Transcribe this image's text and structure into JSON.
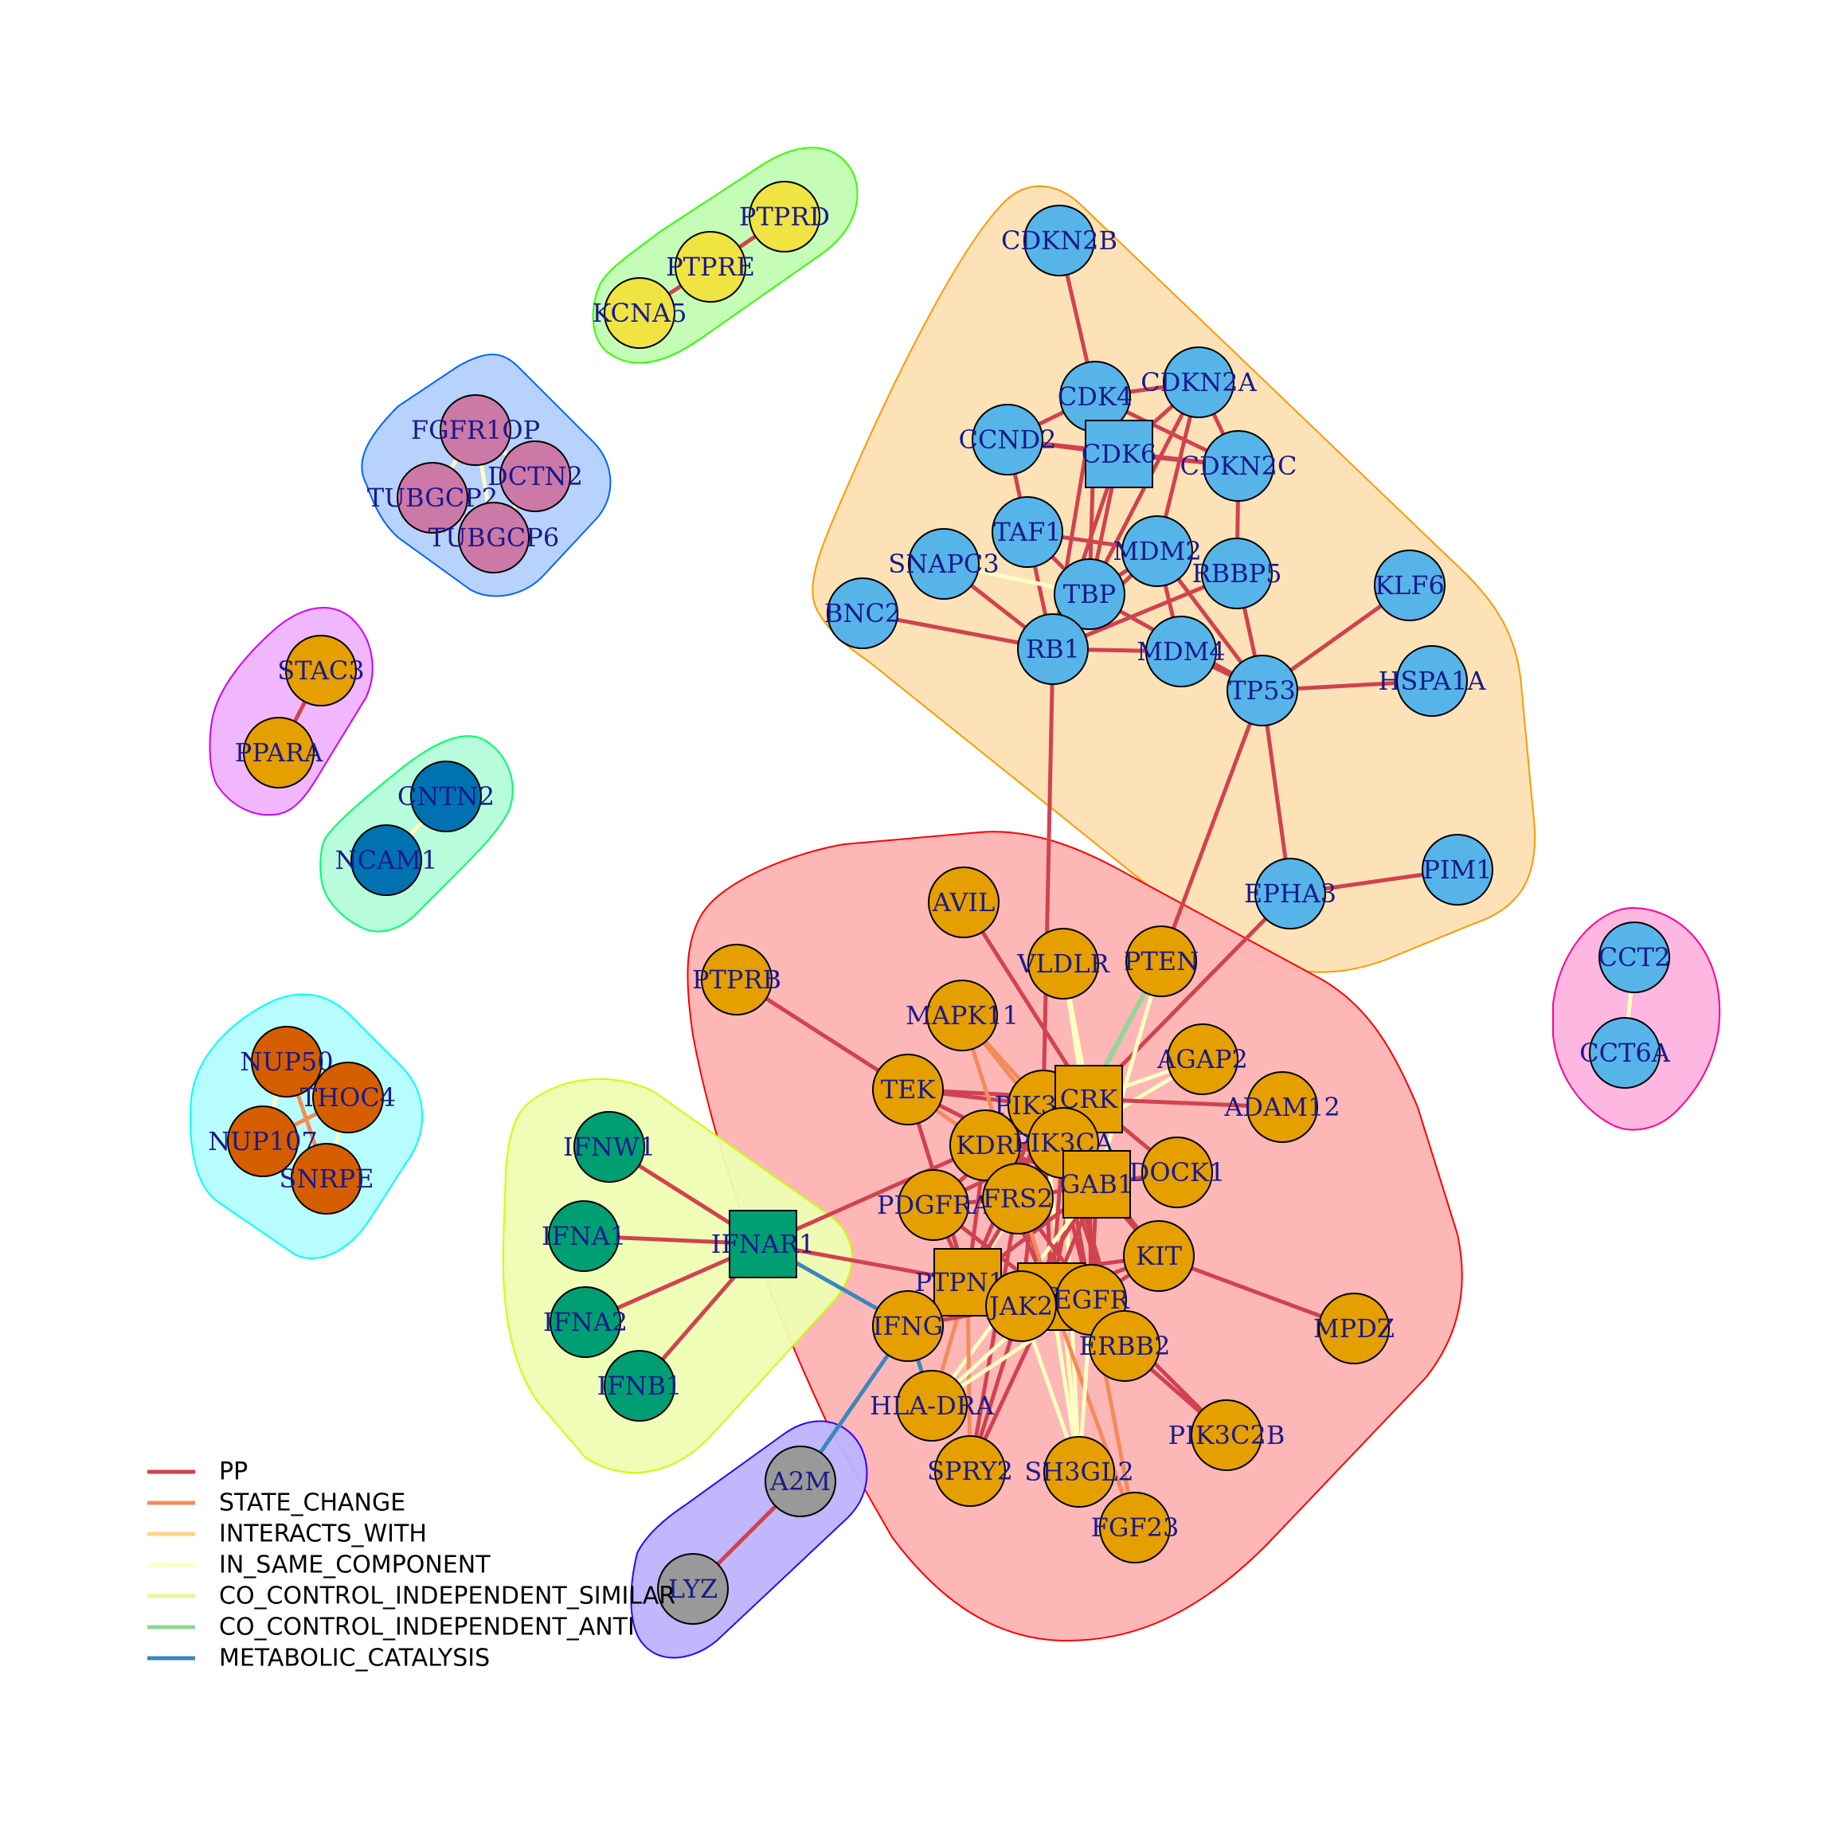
{
  "palette": {
    "blue": "#56B4E9",
    "orange": "#E69F00",
    "green": "#009E73",
    "yellow": "#F0E442",
    "pink": "#CC79A7",
    "rust": "#D55E00",
    "dkblue": "#0072B2",
    "gray": "#999999"
  },
  "edge_colors": {
    "PP": "#D1424F",
    "STATE_CHANGE": "#F48B5A",
    "INTERACTS_WITH": "#FDD585",
    "IN_SAME_COMPONENT": "#FFFFC0",
    "CO_CONTROL_INDEPENDENT_SIMILAR": "#E9F59E",
    "CO_CONTROL_INDEPENDENT_ANTI": "#93D597",
    "METABOLIC_CATALYSIS": "#3B87BC"
  },
  "groups": [
    {
      "id": "g-tp53",
      "fill": "#FDE0B4",
      "stroke": "#FF9900"
    },
    {
      "id": "g-rtk",
      "fill": "#FDB3B3",
      "stroke": "#FF0000"
    },
    {
      "id": "g-ifn",
      "fill": "#EEFDB3",
      "stroke": "#CCFF00"
    },
    {
      "id": "g-ptpr",
      "fill": "#C2FDB3",
      "stroke": "#33FF00"
    },
    {
      "id": "g-fgfr1op",
      "fill": "#B3D1FD",
      "stroke": "#0066FF"
    },
    {
      "id": "g-stac3",
      "fill": "#EFB3FD",
      "stroke": "#CC00FF"
    },
    {
      "id": "g-cntn2",
      "fill": "#B3FDD9",
      "stroke": "#00FF66"
    },
    {
      "id": "g-nup",
      "fill": "#B3FDFD",
      "stroke": "#00FFFF"
    },
    {
      "id": "g-a2m",
      "fill": "#BDB3FD",
      "stroke": "#3300FF"
    },
    {
      "id": "g-cct",
      "fill": "#FDB3DF",
      "stroke": "#FF0099"
    }
  ],
  "nodes": [
    {
      "id": "CDKN2B",
      "label": "CDKN2B",
      "color": "blue",
      "shape": "circle"
    },
    {
      "id": "CDKN2A",
      "label": "CDKN2A",
      "color": "blue",
      "shape": "circle"
    },
    {
      "id": "CDK4",
      "label": "CDK4",
      "color": "blue",
      "shape": "circle"
    },
    {
      "id": "CCND2",
      "label": "CCND2",
      "color": "blue",
      "shape": "circle"
    },
    {
      "id": "CDK6",
      "label": "CDK6",
      "color": "blue",
      "shape": "square"
    },
    {
      "id": "CDKN2C",
      "label": "CDKN2C",
      "color": "blue",
      "shape": "circle"
    },
    {
      "id": "TAF1",
      "label": "TAF1",
      "color": "blue",
      "shape": "circle"
    },
    {
      "id": "MDM2",
      "label": "MDM2",
      "color": "blue",
      "shape": "circle"
    },
    {
      "id": "SNAPC3",
      "label": "SNAPC3",
      "color": "blue",
      "shape": "circle"
    },
    {
      "id": "RBBP5",
      "label": "RBBP5",
      "color": "blue",
      "shape": "circle"
    },
    {
      "id": "KLF6",
      "label": "KLF6",
      "color": "blue",
      "shape": "circle"
    },
    {
      "id": "TBP",
      "label": "TBP",
      "color": "blue",
      "shape": "circle"
    },
    {
      "id": "BNC2",
      "label": "BNC2",
      "color": "blue",
      "shape": "circle"
    },
    {
      "id": "RB1",
      "label": "RB1",
      "color": "blue",
      "shape": "circle"
    },
    {
      "id": "MDM4",
      "label": "MDM4",
      "color": "blue",
      "shape": "circle"
    },
    {
      "id": "HSPA1A",
      "label": "HSPA1A",
      "color": "blue",
      "shape": "circle"
    },
    {
      "id": "TP53",
      "label": "TP53",
      "color": "blue",
      "shape": "circle"
    },
    {
      "id": "PIM1",
      "label": "PIM1",
      "color": "blue",
      "shape": "circle"
    },
    {
      "id": "EPHA3",
      "label": "EPHA3",
      "color": "blue",
      "shape": "circle"
    },
    {
      "id": "CCT2",
      "label": "CCT2",
      "color": "blue",
      "shape": "circle"
    },
    {
      "id": "CCT6A",
      "label": "CCT6A",
      "color": "blue",
      "shape": "circle"
    },
    {
      "id": "PTPRD",
      "label": "PTPRD",
      "color": "yellow",
      "shape": "circle"
    },
    {
      "id": "PTPRE",
      "label": "PTPRE",
      "color": "yellow",
      "shape": "circle"
    },
    {
      "id": "KCNA5",
      "label": "KCNA5",
      "color": "yellow",
      "shape": "circle"
    },
    {
      "id": "FGFR1OP",
      "label": "FGFR1OP",
      "color": "pink",
      "shape": "circle"
    },
    {
      "id": "DCTN2",
      "label": "DCTN2",
      "color": "pink",
      "shape": "circle"
    },
    {
      "id": "TUBGCP2",
      "label": "TUBGCP2",
      "color": "pink",
      "shape": "circle"
    },
    {
      "id": "TUBGCP6",
      "label": "TUBGCP6",
      "color": "pink",
      "shape": "circle"
    },
    {
      "id": "STAC3",
      "label": "STAC3",
      "color": "orange",
      "shape": "circle"
    },
    {
      "id": "PPARA",
      "label": "PPARA",
      "color": "orange",
      "shape": "circle"
    },
    {
      "id": "CNTN2",
      "label": "CNTN2",
      "color": "dkblue",
      "shape": "circle"
    },
    {
      "id": "NCAM1",
      "label": "NCAM1",
      "color": "dkblue",
      "shape": "circle"
    },
    {
      "id": "NUP50",
      "label": "NUP50",
      "color": "rust",
      "shape": "circle"
    },
    {
      "id": "THOC4",
      "label": "THOC4",
      "color": "rust",
      "shape": "circle"
    },
    {
      "id": "NUP107",
      "label": "NUP107",
      "color": "rust",
      "shape": "circle"
    },
    {
      "id": "SNRPE",
      "label": "SNRPE",
      "color": "rust",
      "shape": "circle"
    },
    {
      "id": "IFNW1",
      "label": "IFNW1",
      "color": "green",
      "shape": "circle"
    },
    {
      "id": "IFNA1",
      "label": "IFNA1",
      "color": "green",
      "shape": "circle"
    },
    {
      "id": "IFNAR1",
      "label": "IFNAR1",
      "color": "green",
      "shape": "square"
    },
    {
      "id": "IFNA2",
      "label": "IFNA2",
      "color": "green",
      "shape": "circle"
    },
    {
      "id": "IFNB1",
      "label": "IFNB1",
      "color": "green",
      "shape": "circle"
    },
    {
      "id": "A2M",
      "label": "A2M",
      "color": "gray",
      "shape": "circle"
    },
    {
      "id": "LYZ",
      "label": "LYZ",
      "color": "gray",
      "shape": "circle"
    },
    {
      "id": "AVIL",
      "label": "AVIL",
      "color": "orange",
      "shape": "circle"
    },
    {
      "id": "VLDLR",
      "label": "VLDLR",
      "color": "orange",
      "shape": "circle"
    },
    {
      "id": "PTEN",
      "label": "PTEN",
      "color": "orange",
      "shape": "circle"
    },
    {
      "id": "PTPRB",
      "label": "PTPRB",
      "color": "orange",
      "shape": "circle"
    },
    {
      "id": "MAPK11",
      "label": "MAPK11",
      "color": "orange",
      "shape": "circle"
    },
    {
      "id": "AGAP2",
      "label": "AGAP2",
      "color": "orange",
      "shape": "circle"
    },
    {
      "id": "TEK",
      "label": "TEK",
      "color": "orange",
      "shape": "circle"
    },
    {
      "id": "PIK3R1",
      "label": "PIK3R1",
      "color": "orange",
      "shape": "circle"
    },
    {
      "id": "CRK",
      "label": "CRK",
      "color": "orange",
      "shape": "square"
    },
    {
      "id": "ADAM12",
      "label": "ADAM12",
      "color": "orange",
      "shape": "circle"
    },
    {
      "id": "KDR",
      "label": "KDR",
      "color": "orange",
      "shape": "circle"
    },
    {
      "id": "PIK3CA",
      "label": "PIK3CA",
      "color": "orange",
      "shape": "circle"
    },
    {
      "id": "DOCK1",
      "label": "DOCK1",
      "color": "orange",
      "shape": "circle"
    },
    {
      "id": "GAB1",
      "label": "GAB1",
      "color": "orange",
      "shape": "square"
    },
    {
      "id": "PDGFRA",
      "label": "PDGFRA",
      "color": "orange",
      "shape": "circle"
    },
    {
      "id": "FRS2",
      "label": "FRS2",
      "color": "orange",
      "shape": "circle"
    },
    {
      "id": "KIT",
      "label": "KIT",
      "color": "orange",
      "shape": "circle"
    },
    {
      "id": "PTPN11",
      "label": "PTPN11",
      "color": "orange",
      "shape": "square"
    },
    {
      "id": "CBL",
      "label": "CBL",
      "color": "orange",
      "shape": "square"
    },
    {
      "id": "EGFR",
      "label": "EGFR",
      "color": "orange",
      "shape": "circle"
    },
    {
      "id": "JAK2",
      "label": "JAK2",
      "color": "orange",
      "shape": "circle"
    },
    {
      "id": "IFNG",
      "label": "IFNG",
      "color": "orange",
      "shape": "circle"
    },
    {
      "id": "MPDZ",
      "label": "MPDZ",
      "color": "orange",
      "shape": "circle"
    },
    {
      "id": "ERBB2",
      "label": "ERBB2",
      "color": "orange",
      "shape": "circle"
    },
    {
      "id": "HLA-DRA",
      "label": "HLA-DRA",
      "color": "orange",
      "shape": "circle"
    },
    {
      "id": "PIK3C2B",
      "label": "PIK3C2B",
      "color": "orange",
      "shape": "circle"
    },
    {
      "id": "SPRY2",
      "label": "SPRY2",
      "color": "orange",
      "shape": "circle"
    },
    {
      "id": "SH3GL2",
      "label": "SH3GL2",
      "color": "orange",
      "shape": "circle"
    },
    {
      "id": "FGF23",
      "label": "FGF23",
      "color": "orange",
      "shape": "circle"
    }
  ],
  "edges": [
    [
      "CDKN2B",
      "CDK4",
      "PP"
    ],
    [
      "CDK4",
      "CDKN2A",
      "PP"
    ],
    [
      "CDK4",
      "CCND2",
      "PP"
    ],
    [
      "CDK4",
      "CDK6",
      "PP"
    ],
    [
      "CDK4",
      "CDKN2C",
      "PP"
    ],
    [
      "CDKN2A",
      "CDK6",
      "PP"
    ],
    [
      "CDKN2A",
      "CDKN2C",
      "PP"
    ],
    [
      "CCND2",
      "CDK6",
      "PP"
    ],
    [
      "CCND2",
      "CDKN2C",
      "PP"
    ],
    [
      "CDK6",
      "CDKN2C",
      "PP"
    ],
    [
      "CCND2",
      "TAF1",
      "PP"
    ],
    [
      "CDK4",
      "TBP",
      "PP"
    ],
    [
      "CDK6",
      "TBP",
      "PP"
    ],
    [
      "CDKN2A",
      "MDM2",
      "PP"
    ],
    [
      "CDKN2A",
      "TBP",
      "PP"
    ],
    [
      "CDKN2C",
      "RBBP5",
      "PP"
    ],
    [
      "CDK6",
      "RB1",
      "PP"
    ],
    [
      "CDK4",
      "RB1",
      "PP"
    ],
    [
      "TAF1",
      "MDM2",
      "PP"
    ],
    [
      "TAF1",
      "TBP",
      "PP"
    ],
    [
      "TAF1",
      "RB1",
      "PP"
    ],
    [
      "SNAPC3",
      "TBP",
      "IN_SAME_COMPONENT"
    ],
    [
      "SNAPC3",
      "RB1",
      "PP"
    ],
    [
      "MDM2",
      "TBP",
      "PP"
    ],
    [
      "MDM2",
      "RB1",
      "PP"
    ],
    [
      "MDM2",
      "MDM4",
      "PP"
    ],
    [
      "MDM2",
      "TP53",
      "PP"
    ],
    [
      "RBBP5",
      "TP53",
      "PP"
    ],
    [
      "RBBP5",
      "RB1",
      "PP"
    ],
    [
      "TBP",
      "RB1",
      "PP"
    ],
    [
      "TBP",
      "TP53",
      "PP"
    ],
    [
      "BNC2",
      "RB1",
      "PP"
    ],
    [
      "RB1",
      "MDM4",
      "PP"
    ],
    [
      "MDM4",
      "TP53",
      "PP"
    ],
    [
      "KLF6",
      "TP53",
      "PP"
    ],
    [
      "HSPA1A",
      "TP53",
      "PP"
    ],
    [
      "TP53",
      "EPHA3",
      "PP"
    ],
    [
      "EPHA3",
      "PIM1",
      "PP"
    ],
    [
      "TP53",
      "PTEN",
      "PP"
    ],
    [
      "RB1",
      "PIK3R1",
      "PP"
    ],
    [
      "EPHA3",
      "CRK",
      "PP"
    ],
    [
      "CCT2",
      "CCT6A",
      "IN_SAME_COMPONENT"
    ],
    [
      "PTPRD",
      "PTPRE",
      "PP"
    ],
    [
      "PTPRE",
      "KCNA5",
      "PP"
    ],
    [
      "FGFR1OP",
      "DCTN2",
      "IN_SAME_COMPONENT"
    ],
    [
      "FGFR1OP",
      "TUBGCP2",
      "IN_SAME_COMPONENT"
    ],
    [
      "FGFR1OP",
      "TUBGCP6",
      "IN_SAME_COMPONENT"
    ],
    [
      "TUBGCP2",
      "TUBGCP6",
      "IN_SAME_COMPONENT"
    ],
    [
      "DCTN2",
      "TUBGCP6",
      "IN_SAME_COMPONENT"
    ],
    [
      "STAC3",
      "PPARA",
      "PP"
    ],
    [
      "CNTN2",
      "NCAM1",
      "IN_SAME_COMPONENT"
    ],
    [
      "NUP50",
      "THOC4",
      "STATE_CHANGE"
    ],
    [
      "NUP50",
      "NUP107",
      "IN_SAME_COMPONENT"
    ],
    [
      "NUP50",
      "SNRPE",
      "STATE_CHANGE"
    ],
    [
      "THOC4",
      "SNRPE",
      "IN_SAME_COMPONENT"
    ],
    [
      "NUP107",
      "SNRPE",
      "IN_SAME_COMPONENT"
    ],
    [
      "NUP107",
      "THOC4",
      "STATE_CHANGE"
    ],
    [
      "IFNW1",
      "IFNAR1",
      "PP"
    ],
    [
      "IFNA1",
      "IFNAR1",
      "PP"
    ],
    [
      "IFNA2",
      "IFNAR1",
      "PP"
    ],
    [
      "IFNB1",
      "IFNAR1",
      "PP"
    ],
    [
      "IFNAR1",
      "KDR",
      "PP"
    ],
    [
      "IFNAR1",
      "CBL",
      "PP"
    ],
    [
      "IFNAR1",
      "IFNG",
      "METABOLIC_CATALYSIS"
    ],
    [
      "IFNG",
      "A2M",
      "METABOLIC_CATALYSIS"
    ],
    [
      "A2M",
      "LYZ",
      "PP"
    ],
    [
      "IFNG",
      "HLA-DRA",
      "METABOLIC_CATALYSIS"
    ],
    [
      "AVIL",
      "CRK",
      "PP"
    ],
    [
      "VLDLR",
      "CRK",
      "IN_SAME_COMPONENT"
    ],
    [
      "VLDLR",
      "GAB1",
      "IN_SAME_COMPONENT"
    ],
    [
      "PTEN",
      "CRK",
      "CO_CONTROL_INDEPENDENT_ANTI"
    ],
    [
      "PTEN",
      "GAB1",
      "IN_SAME_COMPONENT"
    ],
    [
      "PTEN",
      "PIK3CA",
      "CO_CONTROL_INDEPENDENT_ANTI"
    ],
    [
      "PTPRB",
      "TEK",
      "PP"
    ],
    [
      "MAPK11",
      "PIK3R1",
      "STATE_CHANGE"
    ],
    [
      "MAPK11",
      "GAB1",
      "STATE_CHANGE"
    ],
    [
      "AGAP2",
      "CRK",
      "IN_SAME_COMPONENT"
    ],
    [
      "AGAP2",
      "PIK3CA",
      "IN_SAME_COMPONENT"
    ],
    [
      "ADAM12",
      "CRK",
      "PP"
    ],
    [
      "TEK",
      "PIK3R1",
      "PP"
    ],
    [
      "TEK",
      "KDR",
      "STATE_CHANGE"
    ],
    [
      "TEK",
      "PTPN11",
      "PP"
    ],
    [
      "TEK",
      "GAB1",
      "PP"
    ],
    [
      "PIK3R1",
      "CRK",
      "PP"
    ],
    [
      "PIK3R1",
      "KDR",
      "PP"
    ],
    [
      "PIK3R1",
      "PIK3CA",
      "PP"
    ],
    [
      "PIK3R1",
      "GAB1",
      "PP"
    ],
    [
      "PIK3R1",
      "FRS2",
      "PP"
    ],
    [
      "PIK3R1",
      "PTPN11",
      "PP"
    ],
    [
      "PIK3R1",
      "CBL",
      "PP"
    ],
    [
      "PIK3R1",
      "EGFR",
      "PP"
    ],
    [
      "PIK3R1",
      "KIT",
      "PP"
    ],
    [
      "PIK3R1",
      "PDGFRA",
      "PP"
    ],
    [
      "PIK3R1",
      "JAK2",
      "PP"
    ],
    [
      "PIK3R1",
      "ERBB2",
      "PP"
    ],
    [
      "PIK3R1",
      "SH3GL2",
      "IN_SAME_COMPONENT"
    ],
    [
      "CRK",
      "KDR",
      "PP"
    ],
    [
      "CRK",
      "GAB1",
      "PP"
    ],
    [
      "CRK",
      "DOCK1",
      "PP"
    ],
    [
      "CRK",
      "CBL",
      "PP"
    ],
    [
      "CRK",
      "EGFR",
      "PP"
    ],
    [
      "CRK",
      "FRS2",
      "PP"
    ],
    [
      "CRK",
      "PTPN11",
      "IN_SAME_COMPONENT"
    ],
    [
      "KDR",
      "PIK3CA",
      "PP"
    ],
    [
      "KDR",
      "GAB1",
      "PP"
    ],
    [
      "KDR",
      "PTPN11",
      "PP"
    ],
    [
      "KDR",
      "CBL",
      "PP"
    ],
    [
      "PIK3CA",
      "GAB1",
      "PP"
    ],
    [
      "PIK3CA",
      "FRS2",
      "PP"
    ],
    [
      "PIK3CA",
      "CBL",
      "PP"
    ],
    [
      "PIK3CA",
      "EGFR",
      "PP"
    ],
    [
      "PIK3CA",
      "ERBB2",
      "PP"
    ],
    [
      "PIK3CA",
      "KIT",
      "PP"
    ],
    [
      "PIK3CA",
      "SH3GL2",
      "IN_SAME_COMPONENT"
    ],
    [
      "DOCK1",
      "GAB1",
      "PP"
    ],
    [
      "GAB1",
      "FRS2",
      "PP"
    ],
    [
      "GAB1",
      "PTPN11",
      "PP"
    ],
    [
      "GAB1",
      "CBL",
      "PP"
    ],
    [
      "GAB1",
      "EGFR",
      "PP"
    ],
    [
      "GAB1",
      "KIT",
      "PP"
    ],
    [
      "GAB1",
      "JAK2",
      "PP"
    ],
    [
      "GAB1",
      "HLA-DRA",
      "IN_SAME_COMPONENT"
    ],
    [
      "PDGFRA",
      "PTPN11",
      "PP"
    ],
    [
      "PDGFRA",
      "CBL",
      "PP"
    ],
    [
      "PDGFRA",
      "FRS2",
      "PP"
    ],
    [
      "FRS2",
      "PTPN11",
      "PP"
    ],
    [
      "FRS2",
      "CBL",
      "PP"
    ],
    [
      "FRS2",
      "EGFR",
      "PP"
    ],
    [
      "FRS2",
      "SPRY2",
      "PP"
    ],
    [
      "KIT",
      "MPDZ",
      "PP"
    ],
    [
      "KIT",
      "CBL",
      "PP"
    ],
    [
      "KIT",
      "PTPN11",
      "PP"
    ],
    [
      "PTPN11",
      "CBL",
      "PP"
    ],
    [
      "PTPN11",
      "EGFR",
      "PP"
    ],
    [
      "PTPN11",
      "JAK2",
      "PP"
    ],
    [
      "PTPN11",
      "SPRY2",
      "STATE_CHANGE"
    ],
    [
      "PTPN11",
      "HLA-DRA",
      "STATE_CHANGE"
    ],
    [
      "CBL",
      "EGFR",
      "PP"
    ],
    [
      "CBL",
      "JAK2",
      "PP"
    ],
    [
      "CBL",
      "SPRY2",
      "PP"
    ],
    [
      "CBL",
      "SH3GL2",
      "IN_SAME_COMPONENT"
    ],
    [
      "CBL",
      "HLA-DRA",
      "IN_SAME_COMPONENT"
    ],
    [
      "CBL",
      "FGF23",
      "STATE_CHANGE"
    ],
    [
      "EGFR",
      "ERBB2",
      "PP"
    ],
    [
      "EGFR",
      "PIK3C2B",
      "PP"
    ],
    [
      "EGFR",
      "SH3GL2",
      "IN_SAME_COMPONENT"
    ],
    [
      "ERBB2",
      "PIK3C2B",
      "PP"
    ],
    [
      "JAK2",
      "IFNG",
      "PP"
    ],
    [
      "JAK2",
      "SPRY2",
      "PP"
    ],
    [
      "JAK2",
      "SH3GL2",
      "IN_SAME_COMPONENT"
    ],
    [
      "IFNG",
      "PTPN11",
      "STATE_CHANGE"
    ],
    [
      "EGFR",
      "FGF23",
      "STATE_CHANGE"
    ],
    [
      "KIT",
      "HLA-DRA",
      "IN_SAME_COMPONENT"
    ],
    [
      "PIK3CA",
      "PDGFRA",
      "PP"
    ],
    [
      "TEK",
      "CRK",
      "PP"
    ],
    [
      "MAPK11",
      "CBL",
      "STATE_CHANGE"
    ],
    [
      "EGFR",
      "KIT",
      "PP"
    ]
  ],
  "legend": [
    {
      "label": "PP",
      "color_key": "PP"
    },
    {
      "label": "STATE_CHANGE",
      "color_key": "STATE_CHANGE"
    },
    {
      "label": "INTERACTS_WITH",
      "color_key": "INTERACTS_WITH"
    },
    {
      "label": "IN_SAME_COMPONENT",
      "color_key": "IN_SAME_COMPONENT"
    },
    {
      "label": "CO_CONTROL_INDEPENDENT_SIMILAR",
      "color_key": "CO_CONTROL_INDEPENDENT_SIMILAR"
    },
    {
      "label": "CO_CONTROL_INDEPENDENT_ANTI",
      "color_key": "CO_CONTROL_INDEPENDENT_ANTI"
    },
    {
      "label": "METABOLIC_CATALYSIS",
      "color_key": "METABOLIC_CATALYSIS"
    }
  ]
}
